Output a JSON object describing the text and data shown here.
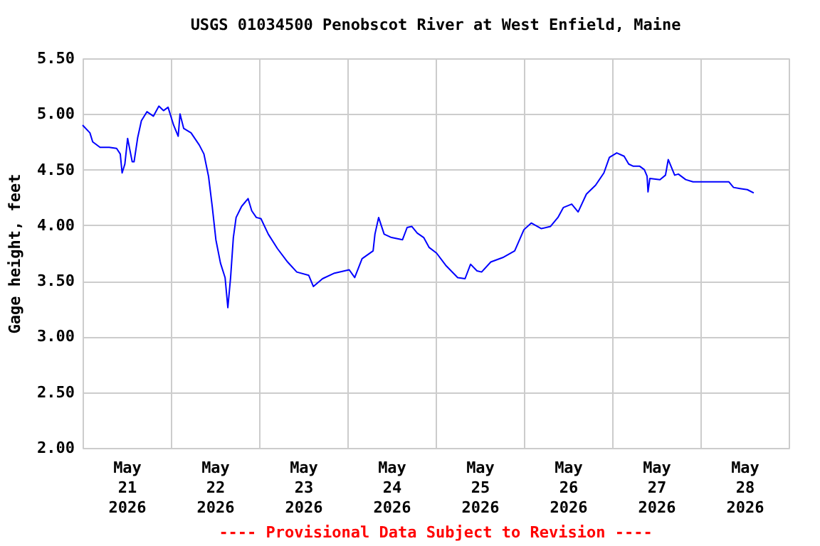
{
  "chart_data": {
    "type": "line",
    "title": "USGS 01034500 Penobscot River at West Enfield, Maine",
    "ylabel": "Gage height, feet",
    "x": [
      "2026-05-21T00:00",
      "2026-05-21T02:00",
      "2026-05-21T02:45",
      "2026-05-21T04:45",
      "2026-05-21T07:15",
      "2026-05-21T09:15",
      "2026-05-21T10:15",
      "2026-05-21T10:45",
      "2026-05-21T11:30",
      "2026-05-21T12:15",
      "2026-05-21T13:30",
      "2026-05-21T14:00",
      "2026-05-21T15:00",
      "2026-05-21T16:00",
      "2026-05-21T17:30",
      "2026-05-21T19:15",
      "2026-05-21T20:45",
      "2026-05-21T22:00",
      "2026-05-21T23:15",
      "2026-05-22T00:45",
      "2026-05-22T02:00",
      "2026-05-22T02:30",
      "2026-05-22T03:30",
      "2026-05-22T05:30",
      "2026-05-22T07:45",
      "2026-05-22T09:00",
      "2026-05-22T10:15",
      "2026-05-22T11:15",
      "2026-05-22T12:15",
      "2026-05-22T13:30",
      "2026-05-22T14:45",
      "2026-05-22T15:30",
      "2026-05-22T16:15",
      "2026-05-22T17:00",
      "2026-05-22T17:45",
      "2026-05-22T19:15",
      "2026-05-22T21:00",
      "2026-05-22T22:00",
      "2026-05-22T23:15",
      "2026-05-23T00:30",
      "2026-05-23T02:30",
      "2026-05-23T05:00",
      "2026-05-23T07:45",
      "2026-05-23T10:15",
      "2026-05-23T13:30",
      "2026-05-23T14:45",
      "2026-05-23T17:15",
      "2026-05-23T20:30",
      "2026-05-24T00:30",
      "2026-05-24T02:00",
      "2026-05-24T04:00",
      "2026-05-24T07:00",
      "2026-05-24T07:30",
      "2026-05-24T08:30",
      "2026-05-24T10:00",
      "2026-05-24T12:00",
      "2026-05-24T15:00",
      "2026-05-24T16:15",
      "2026-05-24T17:30",
      "2026-05-24T19:00",
      "2026-05-24T20:45",
      "2026-05-24T22:15",
      "2026-05-25T00:15",
      "2026-05-25T02:45",
      "2026-05-25T06:00",
      "2026-05-25T08:00",
      "2026-05-25T09:30",
      "2026-05-25T11:15",
      "2026-05-25T12:30",
      "2026-05-25T15:00",
      "2026-05-25T18:15",
      "2026-05-25T21:30",
      "2026-05-26T00:00",
      "2026-05-26T02:00",
      "2026-05-26T04:45",
      "2026-05-26T07:15",
      "2026-05-26T09:15",
      "2026-05-26T10:45",
      "2026-05-26T13:00",
      "2026-05-26T14:45",
      "2026-05-26T17:00",
      "2026-05-26T19:30",
      "2026-05-26T21:45",
      "2026-05-26T23:15",
      "2026-05-27T01:15",
      "2026-05-27T03:15",
      "2026-05-27T04:30",
      "2026-05-27T05:45",
      "2026-05-27T07:30",
      "2026-05-27T08:45",
      "2026-05-27T09:30",
      "2026-05-27T09:45",
      "2026-05-27T10:15",
      "2026-05-27T13:00",
      "2026-05-27T14:30",
      "2026-05-27T15:15",
      "2026-05-27T17:00",
      "2026-05-27T18:00",
      "2026-05-27T20:00",
      "2026-05-27T22:00",
      "2026-05-28T07:45",
      "2026-05-28T09:00",
      "2026-05-28T10:45",
      "2026-05-28T12:45",
      "2026-05-28T14:30"
    ],
    "values": [
      4.9,
      4.83,
      4.75,
      4.7,
      4.7,
      4.69,
      4.64,
      4.47,
      4.55,
      4.78,
      4.57,
      4.57,
      4.79,
      4.94,
      5.02,
      4.98,
      5.07,
      5.03,
      5.06,
      4.9,
      4.8,
      5.0,
      4.87,
      4.83,
      4.72,
      4.64,
      4.44,
      4.17,
      3.87,
      3.66,
      3.53,
      3.26,
      3.53,
      3.89,
      4.07,
      4.17,
      4.24,
      4.13,
      4.07,
      4.06,
      3.92,
      3.79,
      3.67,
      3.58,
      3.55,
      3.45,
      3.52,
      3.57,
      3.6,
      3.53,
      3.7,
      3.77,
      3.92,
      4.07,
      3.92,
      3.89,
      3.87,
      3.98,
      3.99,
      3.93,
      3.89,
      3.8,
      3.75,
      3.64,
      3.53,
      3.52,
      3.65,
      3.59,
      3.58,
      3.67,
      3.71,
      3.77,
      3.96,
      4.02,
      3.97,
      3.99,
      4.07,
      4.16,
      4.19,
      4.12,
      4.28,
      4.36,
      4.47,
      4.61,
      4.65,
      4.62,
      4.55,
      4.53,
      4.53,
      4.5,
      4.44,
      4.3,
      4.42,
      4.41,
      4.45,
      4.59,
      4.45,
      4.46,
      4.41,
      4.39,
      4.39,
      4.34,
      4.33,
      4.32,
      4.29
    ],
    "color": "#0000ff",
    "marker": "none",
    "line_style": "solid",
    "grid": true,
    "xlim": [
      "2026-05-21T00:00",
      "2026-05-29T00:00"
    ],
    "xticks": [
      {
        "value": "2026-05-21T00:00",
        "label": null
      },
      {
        "value": "2026-05-21T12:00",
        "label": "May 21 2026"
      },
      {
        "value": "2026-05-22T00:00",
        "label": null
      },
      {
        "value": "2026-05-22T12:00",
        "label": "May 22 2026"
      },
      {
        "value": "2026-05-23T00:00",
        "label": null
      },
      {
        "value": "2026-05-23T12:00",
        "label": "May 23 2026"
      },
      {
        "value": "2026-05-24T00:00",
        "label": null
      },
      {
        "value": "2026-05-24T12:00",
        "label": "May 24 2026"
      },
      {
        "value": "2026-05-25T00:00",
        "label": null
      },
      {
        "value": "2026-05-25T12:00",
        "label": "May 25 2026"
      },
      {
        "value": "2026-05-26T00:00",
        "label": null
      },
      {
        "value": "2026-05-26T12:00",
        "label": "May 26 2026"
      },
      {
        "value": "2026-05-27T00:00",
        "label": null
      },
      {
        "value": "2026-05-27T12:00",
        "label": "May 27 2026"
      },
      {
        "value": "2026-05-28T00:00",
        "label": null
      },
      {
        "value": "2026-05-28T12:00",
        "label": "May 28 2026"
      },
      {
        "value": "2026-05-29T00:00",
        "label": null
      }
    ],
    "ylim": [
      2.0,
      5.5
    ],
    "yticks": [
      {
        "value": 2.0,
        "label": "2.00"
      },
      {
        "value": 2.5,
        "label": "2.50"
      },
      {
        "value": 3.0,
        "label": "3.00"
      },
      {
        "value": 3.5,
        "label": "3.50"
      },
      {
        "value": 4.0,
        "label": "4.00"
      },
      {
        "value": 4.5,
        "label": "4.50"
      },
      {
        "value": 5.0,
        "label": "5.00"
      },
      {
        "value": 5.5,
        "label": "5.50"
      }
    ],
    "annotations": [
      "---- Provisional Data Subject to Revision ----"
    ]
  }
}
